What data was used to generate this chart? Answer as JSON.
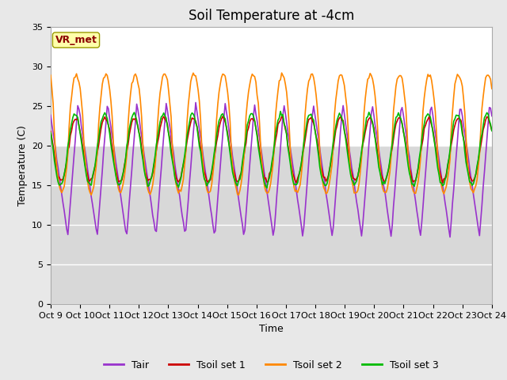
{
  "title": "Soil Temperature at -4cm",
  "xlabel": "Time",
  "ylabel": "Temperature (C)",
  "ylim": [
    0,
    35
  ],
  "yticks": [
    0,
    5,
    10,
    15,
    20,
    25,
    30,
    35
  ],
  "xtick_labels": [
    "Oct 9",
    "Oct 10",
    "Oct 11",
    "Oct 12",
    "Oct 13",
    "Oct 14",
    "Oct 15",
    "Oct 16",
    "Oct 17",
    "Oct 18",
    "Oct 19",
    "Oct 20",
    "Oct 21",
    "Oct 22",
    "Oct 23",
    "Oct 24"
  ],
  "fig_bg_color": "#e8e8e8",
  "plot_bg_color": "#e8e8e8",
  "upper_band_color": "#ffffff",
  "lower_band_color": "#d0d0d0",
  "grid_color": "#ffffff",
  "colors": {
    "Tair": "#9933cc",
    "Tsoil_set1": "#cc0000",
    "Tsoil_set2": "#ff8800",
    "Tsoil_set3": "#00bb00"
  },
  "legend_labels": [
    "Tair",
    "Tsoil set 1",
    "Tsoil set 2",
    "Tsoil set 3"
  ],
  "annotation_text": "VR_met",
  "annotation_color": "#8b0000",
  "annotation_bg": "#ffffaa",
  "annotation_edge": "#999900",
  "title_fontsize": 12,
  "label_fontsize": 9,
  "tick_fontsize": 8,
  "legend_fontsize": 9,
  "linewidth": 1.2,
  "n_days": 15,
  "n_points": 360
}
